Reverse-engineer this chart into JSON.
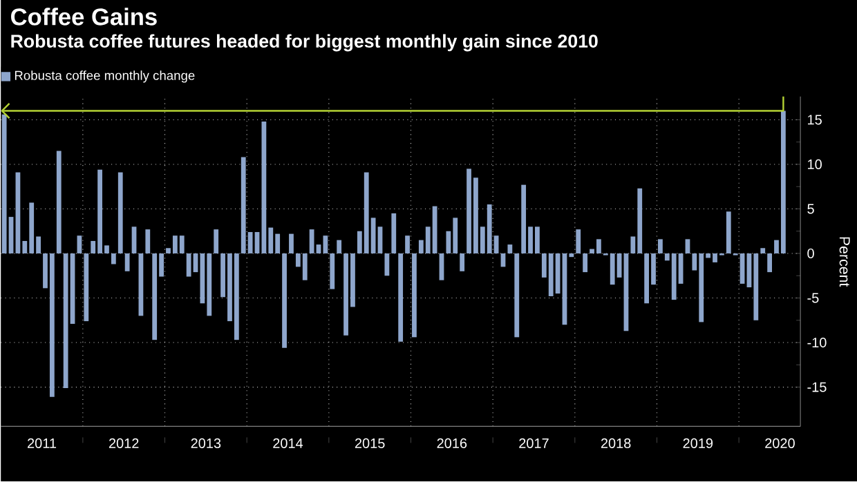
{
  "chart_data": {
    "type": "bar",
    "title": "Coffee Gains",
    "subtitle": "Robusta coffee futures headed for biggest monthly gain since 2010",
    "ylabel": "Percent",
    "x": [
      "2011-01",
      "2011-02",
      "2011-03",
      "2011-04",
      "2011-05",
      "2011-06",
      "2011-07",
      "2011-08",
      "2011-09",
      "2011-10",
      "2011-11",
      "2011-12",
      "2012-01",
      "2012-02",
      "2012-03",
      "2012-04",
      "2012-05",
      "2012-06",
      "2012-07",
      "2012-08",
      "2012-09",
      "2012-10",
      "2012-11",
      "2012-12",
      "2013-01",
      "2013-02",
      "2013-03",
      "2013-04",
      "2013-05",
      "2013-06",
      "2013-07",
      "2013-08",
      "2013-09",
      "2013-10",
      "2013-11",
      "2013-12",
      "2014-01",
      "2014-02",
      "2014-03",
      "2014-04",
      "2014-05",
      "2014-06",
      "2014-07",
      "2014-08",
      "2014-09",
      "2014-10",
      "2014-11",
      "2014-12",
      "2015-01",
      "2015-02",
      "2015-03",
      "2015-04",
      "2015-05",
      "2015-06",
      "2015-07",
      "2015-08",
      "2015-09",
      "2015-10",
      "2015-11",
      "2015-12",
      "2016-01",
      "2016-02",
      "2016-03",
      "2016-04",
      "2016-05",
      "2016-06",
      "2016-07",
      "2016-08",
      "2016-09",
      "2016-10",
      "2016-11",
      "2016-12",
      "2017-01",
      "2017-02",
      "2017-03",
      "2017-04",
      "2017-05",
      "2017-06",
      "2017-07",
      "2017-08",
      "2017-09",
      "2017-10",
      "2017-11",
      "2017-12",
      "2018-01",
      "2018-02",
      "2018-03",
      "2018-04",
      "2018-05",
      "2018-06",
      "2018-07",
      "2018-08",
      "2018-09",
      "2018-10",
      "2018-11",
      "2018-12",
      "2019-01",
      "2019-02",
      "2019-03",
      "2019-04",
      "2019-05",
      "2019-06",
      "2019-07",
      "2019-08",
      "2019-09",
      "2019-10",
      "2019-11",
      "2019-12",
      "2020-01",
      "2020-02",
      "2020-03",
      "2020-04",
      "2020-05",
      "2020-06",
      "2020-07"
    ],
    "series": [
      {
        "name": "Robusta coffee monthly change",
        "color": "#8ea6cc",
        "values": [
          15.6,
          4.1,
          9.1,
          1.4,
          5.7,
          1.9,
          -3.9,
          -16.1,
          11.5,
          -15.1,
          -7.9,
          2,
          -7.6,
          1.4,
          9.4,
          0.9,
          -1.2,
          9.1,
          -2.0,
          3,
          -7.0,
          2.7,
          -9.7,
          -2.6,
          0.6,
          2,
          2,
          -2.6,
          -2.1,
          -5.6,
          -7.0,
          2.7,
          -4.9,
          -7.6,
          -9.7,
          10.8,
          2.4,
          2.4,
          14.8,
          2.9,
          2.2,
          -10.6,
          2.2,
          -1.5,
          -3.0,
          2.7,
          1.0,
          2.0,
          -4.0,
          1.5,
          -9.2,
          -6.0,
          2.5,
          9.1,
          4.0,
          3.0,
          -2.5,
          4.5,
          -9.9,
          2.0,
          -9.4,
          1.5,
          3.0,
          5.3,
          -3.0,
          2.5,
          4.0,
          -2.0,
          9.5,
          8.5,
          3.0,
          5.5,
          2.0,
          -1.5,
          1.0,
          -9.4,
          7.7,
          3,
          3,
          -2.7,
          -4.8,
          -4.5,
          -8.0,
          -0.4,
          2.7,
          -2.1,
          0.5,
          1.6,
          -0.2,
          -3.5,
          -2.7,
          -8.7,
          1.9,
          7.3,
          -5.6,
          -3.5,
          1.6,
          -0.8,
          -5.2,
          -3.4,
          1.6,
          -1.9,
          -7.7,
          -0.5,
          -1.0,
          -0.2,
          4.7,
          -0.2,
          -3.4,
          -3.8,
          -7.5,
          0.6,
          -2.1,
          1.5,
          16.0
        ]
      }
    ],
    "xlim": [
      "2011",
      "2020-10"
    ],
    "xticks": [
      {
        "value": "2011-07",
        "label": "2011"
      },
      {
        "value": "2012",
        "label": null
      },
      {
        "value": "2012-07",
        "label": "2012"
      },
      {
        "value": "2013",
        "label": null
      },
      {
        "value": "2013-07",
        "label": "2013"
      },
      {
        "value": "2014",
        "label": null
      },
      {
        "value": "2014-07",
        "label": "2014"
      },
      {
        "value": "2015",
        "label": null
      },
      {
        "value": "2015-07",
        "label": "2015"
      },
      {
        "value": "2016",
        "label": null
      },
      {
        "value": "2016-07",
        "label": "2016"
      },
      {
        "value": "2017",
        "label": null
      },
      {
        "value": "2017-07",
        "label": "2017"
      },
      {
        "value": "2018",
        "label": null
      },
      {
        "value": "2018-07",
        "label": "2018"
      },
      {
        "value": "2019",
        "label": null
      },
      {
        "value": "2019-07",
        "label": "2019"
      },
      {
        "value": "2020",
        "label": null
      },
      {
        "value": "2020-07",
        "label": "2020"
      }
    ],
    "ylim": [
      -19.4,
      17.6
    ],
    "yticks": [
      -15,
      -10,
      -5,
      0,
      5,
      10,
      15
    ],
    "grid": true,
    "legend": "top left",
    "ref_lines": [
      {
        "axis": "y",
        "value": 16,
        "color": "#b5d334"
      }
    ]
  }
}
